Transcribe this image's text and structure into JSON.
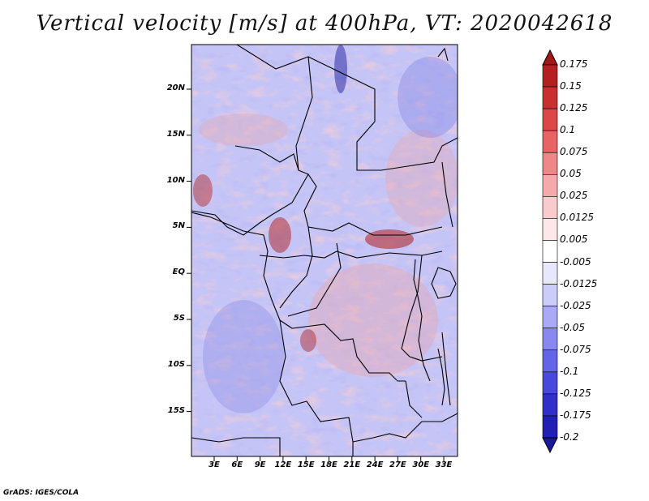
{
  "title": "Vertical velocity [m/s] at 400hPa, VT: 2020042618",
  "credit": "GrADS: IGES/COLA",
  "lat_labels": [
    "20N",
    "15N",
    "10N",
    "5N",
    "EQ",
    "5S",
    "10S",
    "15S"
  ],
  "lon_labels": [
    "3E",
    "6E",
    "9E",
    "12E",
    "15E",
    "18E",
    "21E",
    "24E",
    "27E",
    "30E",
    "33E"
  ],
  "colorbar": {
    "levels": [
      "0.175",
      "0.15",
      "0.125",
      "0.1",
      "0.075",
      "0.05",
      "0.025",
      "0.0125",
      "0.005",
      "-0.005",
      "-0.0125",
      "-0.025",
      "-0.05",
      "-0.075",
      "-0.1",
      "-0.125",
      "-0.175",
      "-0.2"
    ],
    "colors": [
      "#a01818",
      "#b42020",
      "#c83030",
      "#dc4848",
      "#e66464",
      "#ee8888",
      "#f4aaaa",
      "#f8cccc",
      "#fce8e8",
      "#ffffff",
      "#e8e8fc",
      "#ccccf8",
      "#aaaaf4",
      "#8888ee",
      "#6464e6",
      "#4848dc",
      "#3030c8",
      "#2020b4",
      "#18189a"
    ]
  },
  "map_colors": {
    "ocean_blue": "#9a9af0",
    "land_mix_red": "#f0a8a8",
    "border": "#000000"
  }
}
